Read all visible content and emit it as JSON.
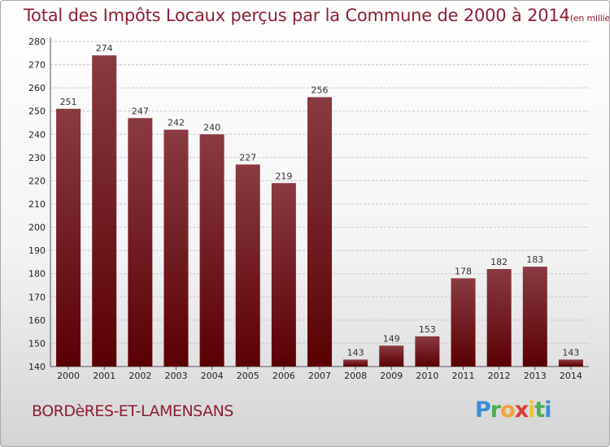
{
  "title": "Total des Impôts Locaux perçus par la Commune de 2000 à 2014",
  "title_unit": "(en milliers d'€)",
  "commune": "BORDèRES-ET-LAMENSANS",
  "logo": {
    "text": "Proxiti",
    "letters": [
      {
        "ch": "P",
        "color": "#3a8fd6"
      },
      {
        "ch": "r",
        "color": "#4caf50"
      },
      {
        "ch": "o",
        "color": "#f2a33a"
      },
      {
        "ch": "x",
        "color": "#d93b3b"
      },
      {
        "ch": "i",
        "color": "#f2c230"
      },
      {
        "ch": "t",
        "color": "#4caf50"
      },
      {
        "ch": "i",
        "color": "#3a8fd6"
      }
    ]
  },
  "colors": {
    "bar_top": "#8a3a42",
    "bar_bottom": "#5a0005",
    "title": "#8d1e33",
    "grid": "#c8c8c8"
  },
  "chart_data": {
    "type": "bar",
    "categories": [
      "2000",
      "2001",
      "2002",
      "2003",
      "2004",
      "2005",
      "2006",
      "2007",
      "2008",
      "2009",
      "2010",
      "2011",
      "2012",
      "2013",
      "2014"
    ],
    "values": [
      251,
      274,
      247,
      242,
      240,
      227,
      219,
      256,
      143,
      149,
      153,
      178,
      182,
      183,
      143
    ],
    "ylim": [
      140,
      280
    ],
    "yticks": [
      140,
      150,
      160,
      170,
      180,
      190,
      200,
      210,
      220,
      230,
      240,
      250,
      260,
      270,
      280
    ],
    "grid": true,
    "title": "Total des Impôts Locaux perçus par la Commune de 2000 à 2014",
    "xlabel": "",
    "ylabel": ""
  }
}
